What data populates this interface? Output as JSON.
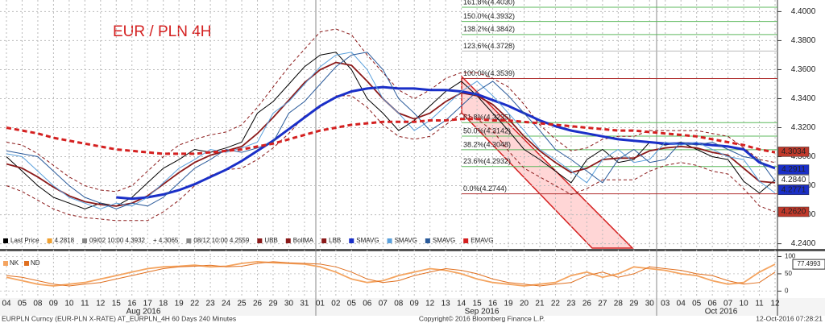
{
  "chart_data": [
    {
      "type": "line",
      "title": "EUR / PLN 4H",
      "categories": [
        "04",
        "05",
        "08",
        "09",
        "10",
        "11",
        "12",
        "15",
        "16",
        "17",
        "18",
        "19",
        "22",
        "23",
        "24",
        "25",
        "26",
        "29",
        "30",
        "31",
        "01",
        "02",
        "05",
        "06",
        "07",
        "08",
        "09",
        "12",
        "13",
        "14",
        "15",
        "16",
        "19",
        "20",
        "21",
        "22",
        "23",
        "26",
        "27",
        "28",
        "29",
        "30",
        "03",
        "04",
        "05",
        "06",
        "07",
        "10",
        "11",
        "12"
      ],
      "month_labels": [
        "Aug 2016",
        "Sep 2016",
        "Oct 2016"
      ],
      "ylim": [
        4.237,
        4.408
      ],
      "yticks": [
        {
          "value": 4.24,
          "label": "4.2400"
        },
        {
          "value": 4.26,
          "label": "4.2600"
        },
        {
          "value": 4.28,
          "label": "4.2800"
        },
        {
          "value": 4.3,
          "label": "4.3000"
        },
        {
          "value": 4.32,
          "label": "4.3200"
        },
        {
          "value": 4.34,
          "label": "4.3400"
        },
        {
          "value": 4.36,
          "label": "4.3600"
        },
        {
          "value": 4.38,
          "label": "4.3800"
        },
        {
          "value": 4.4,
          "label": "4.4000"
        }
      ],
      "grid": true,
      "series": [
        {
          "name": "Last Price",
          "color": "#000000",
          "line": "solid",
          "values": [
            4.3,
            4.29,
            4.28,
            4.272,
            4.268,
            4.264,
            4.268,
            4.266,
            4.272,
            4.282,
            4.292,
            4.298,
            4.305,
            4.303,
            4.306,
            4.31,
            4.33,
            4.338,
            4.35,
            4.362,
            4.37,
            4.372,
            4.36,
            4.34,
            4.33,
            4.318,
            4.325,
            4.335,
            4.345,
            4.352,
            4.342,
            4.33,
            4.318,
            4.305,
            4.298,
            4.29,
            4.282,
            4.298,
            4.305,
            4.296,
            4.298,
            4.31,
            4.308,
            4.31,
            4.305,
            4.3,
            4.298,
            4.283,
            4.275,
            4.284
          ]
        },
        {
          "name": "UBB",
          "color": "#8b1a1a",
          "line": "dashed",
          "values": [
            4.31,
            4.308,
            4.302,
            4.294,
            4.286,
            4.28,
            4.277,
            4.276,
            4.28,
            4.29,
            4.3,
            4.308,
            4.312,
            4.315,
            4.317,
            4.322,
            4.334,
            4.348,
            4.362,
            4.374,
            4.386,
            4.388,
            4.384,
            4.37,
            4.358,
            4.346,
            4.34,
            4.346,
            4.354,
            4.358,
            4.358,
            4.354,
            4.348,
            4.336,
            4.322,
            4.312,
            4.304,
            4.306,
            4.312,
            4.314,
            4.314,
            4.318,
            4.318,
            4.318,
            4.318,
            4.316,
            4.314,
            4.306,
            4.298,
            4.296
          ]
        },
        {
          "name": "BollMA",
          "color": "#8b1a1a",
          "line": "medium",
          "values": [
            4.295,
            4.292,
            4.286,
            4.279,
            4.273,
            4.269,
            4.267,
            4.266,
            4.268,
            4.273,
            4.281,
            4.289,
            4.296,
            4.301,
            4.304,
            4.307,
            4.316,
            4.327,
            4.339,
            4.351,
            4.36,
            4.365,
            4.363,
            4.352,
            4.34,
            4.33,
            4.326,
            4.33,
            4.338,
            4.344,
            4.342,
            4.336,
            4.326,
            4.314,
            4.304,
            4.296,
            4.289,
            4.292,
            4.298,
            4.299,
            4.299,
            4.304,
            4.306,
            4.307,
            4.306,
            4.303,
            4.301,
            4.292,
            4.283,
            4.282
          ]
        },
        {
          "name": "LBB",
          "color": "#8b1a1a",
          "line": "dashed",
          "values": [
            4.28,
            4.276,
            4.27,
            4.264,
            4.26,
            4.258,
            4.257,
            4.256,
            4.256,
            4.256,
            4.262,
            4.27,
            4.28,
            4.287,
            4.291,
            4.292,
            4.298,
            4.306,
            4.316,
            4.328,
            4.334,
            4.342,
            4.342,
            4.334,
            4.322,
            4.314,
            4.312,
            4.314,
            4.322,
            4.33,
            4.326,
            4.318,
            4.304,
            4.292,
            4.286,
            4.28,
            4.274,
            4.278,
            4.284,
            4.284,
            4.284,
            4.29,
            4.294,
            4.296,
            4.294,
            4.29,
            4.288,
            4.278,
            4.266,
            4.262
          ]
        },
        {
          "name": "SMAVG",
          "color": "#1a2fc8",
          "line": "thick",
          "values": [
            null,
            null,
            null,
            null,
            null,
            null,
            null,
            4.272,
            4.271,
            4.272,
            4.274,
            4.277,
            4.281,
            4.286,
            4.291,
            4.297,
            4.304,
            4.311,
            4.319,
            4.327,
            4.335,
            4.341,
            4.345,
            4.347,
            4.348,
            4.347,
            4.347,
            4.346,
            4.346,
            4.345,
            4.343,
            4.339,
            4.335,
            4.33,
            4.325,
            4.321,
            4.318,
            4.316,
            4.314,
            4.312,
            4.311,
            4.31,
            4.309,
            4.309,
            4.309,
            4.308,
            4.307,
            4.305,
            4.296,
            4.292
          ]
        },
        {
          "name": "SMAVG",
          "color": "#5aa0dc",
          "line": "solid",
          "values": [
            4.302,
            4.3,
            4.29,
            4.28,
            4.272,
            4.268,
            4.264,
            4.268,
            4.266,
            4.272,
            4.282,
            4.292,
            4.298,
            4.305,
            4.303,
            4.306,
            4.31,
            4.33,
            4.338,
            4.35,
            4.362,
            4.37,
            4.372,
            4.36,
            4.34,
            4.33,
            4.318,
            4.325,
            4.335,
            4.345,
            4.352,
            4.342,
            4.33,
            4.318,
            4.305,
            4.298,
            4.29,
            4.282,
            4.298,
            4.305,
            4.296,
            4.298,
            4.31,
            4.308,
            4.31,
            4.305,
            4.3,
            4.298,
            4.283,
            4.275
          ]
        },
        {
          "name": "SMAVG",
          "color": "#2a5a9a",
          "line": "solid",
          "values": [
            4.304,
            4.302,
            4.3,
            4.29,
            4.28,
            4.272,
            4.268,
            4.264,
            4.268,
            4.266,
            4.272,
            4.282,
            4.292,
            4.298,
            4.305,
            4.303,
            4.306,
            4.31,
            4.33,
            4.338,
            4.35,
            4.362,
            4.37,
            4.372,
            4.36,
            4.34,
            4.33,
            4.318,
            4.325,
            4.335,
            4.345,
            4.352,
            4.342,
            4.33,
            4.318,
            4.305,
            4.298,
            4.29,
            4.282,
            4.298,
            4.305,
            4.296,
            4.298,
            4.31,
            4.308,
            4.31,
            4.305,
            4.3,
            4.298,
            4.283
          ]
        },
        {
          "name": "EMAVG",
          "color": "#d42020",
          "line": "thick-dashed",
          "values": [
            4.32,
            4.318,
            4.316,
            4.313,
            4.311,
            4.309,
            4.307,
            4.305,
            4.304,
            4.303,
            4.302,
            4.302,
            4.302,
            4.303,
            4.304,
            4.305,
            4.307,
            4.309,
            4.312,
            4.315,
            4.318,
            4.32,
            4.322,
            4.323,
            4.324,
            4.324,
            4.324,
            4.325,
            4.325,
            4.326,
            4.326,
            4.325,
            4.325,
            4.324,
            4.323,
            4.322,
            4.321,
            4.32,
            4.319,
            4.318,
            4.318,
            4.317,
            4.316,
            4.315,
            4.314,
            4.312,
            4.31,
            4.308,
            4.305,
            4.303
          ]
        }
      ],
      "legend_stats": {
        "last": 4.2818,
        "high": "09/02 10:00 4.3932",
        "average": "+ 4.3065",
        "low": "08/12 10:00 4.2559"
      },
      "fib_levels": [
        {
          "label": "161.8%(4.4030)",
          "value": 4.403,
          "color": "#5cb85c"
        },
        {
          "label": "150.0%(4.3932)",
          "value": 4.3932,
          "color": "#5cb85c"
        },
        {
          "label": "138.2%(4.3842)",
          "value": 4.3842,
          "color": "#5cb85c"
        },
        {
          "label": "123.6%(4.3728)",
          "value": 4.3728,
          "color": "#bbbbbb"
        },
        {
          "label": "100.0%(4.3539)",
          "value": 4.3539,
          "color": "#b03030"
        },
        {
          "label": "61.8%(4.3235)",
          "value": 4.3235,
          "color": "#5cb85c"
        },
        {
          "label": "50.0%(4.3142)",
          "value": 4.3142,
          "color": "#5cb85c"
        },
        {
          "label": "38.2%(4.3048)",
          "value": 4.3048,
          "color": "#5cb85c"
        },
        {
          "label": "23.6%(4.2932)",
          "value": 4.2932,
          "color": "#5cb85c"
        },
        {
          "label": "0.0%(4.2744)",
          "value": 4.2744,
          "color": "#b03030"
        }
      ],
      "price_tags": [
        {
          "value": 4.3034,
          "label": "4.3034",
          "color": "#c0392b"
        },
        {
          "value": 4.2911,
          "label": "4.2911",
          "color": "#1a2fc8"
        },
        {
          "value": 4.284,
          "label": "4.2840",
          "color": "#ffffff"
        },
        {
          "value": 4.2771,
          "label": "4.2771",
          "color": "#1a2fc8"
        },
        {
          "value": 4.262,
          "label": "4.2620",
          "color": "#c0392b"
        }
      ]
    },
    {
      "type": "line",
      "ylim": [
        -20,
        115
      ],
      "yticks": [
        0,
        50,
        100
      ],
      "series": [
        {
          "name": "NK",
          "color": "#f4a460",
          "line": "medium",
          "values": [
            40,
            30,
            20,
            15,
            20,
            25,
            35,
            45,
            55,
            65,
            70,
            72,
            75,
            70,
            72,
            80,
            85,
            82,
            80,
            78,
            70,
            55,
            35,
            25,
            30,
            45,
            55,
            65,
            60,
            50,
            35,
            25,
            20,
            15,
            20,
            25,
            45,
            55,
            40,
            50,
            70,
            65,
            60,
            50,
            45,
            30,
            20,
            25,
            55,
            77.4993
          ]
        },
        {
          "name": "ND",
          "color": "#e07020",
          "line": "solid",
          "values": [
            45,
            40,
            30,
            20,
            15,
            20,
            25,
            35,
            45,
            55,
            65,
            70,
            72,
            75,
            70,
            72,
            80,
            85,
            82,
            80,
            78,
            70,
            55,
            35,
            25,
            30,
            45,
            55,
            65,
            60,
            50,
            35,
            25,
            20,
            15,
            20,
            25,
            45,
            55,
            40,
            50,
            70,
            65,
            60,
            50,
            45,
            30,
            20,
            25,
            55
          ]
        }
      ]
    }
  ],
  "footer": {
    "left": "EURPLN Curncy (EUR-PLN X-RATE) AT_EURPLN_4H 60 Days 240 Minutes",
    "center": "Copyright© 2016 Bloomberg Finance L.P.",
    "right": "12-Oct-2016 07:28:21"
  }
}
